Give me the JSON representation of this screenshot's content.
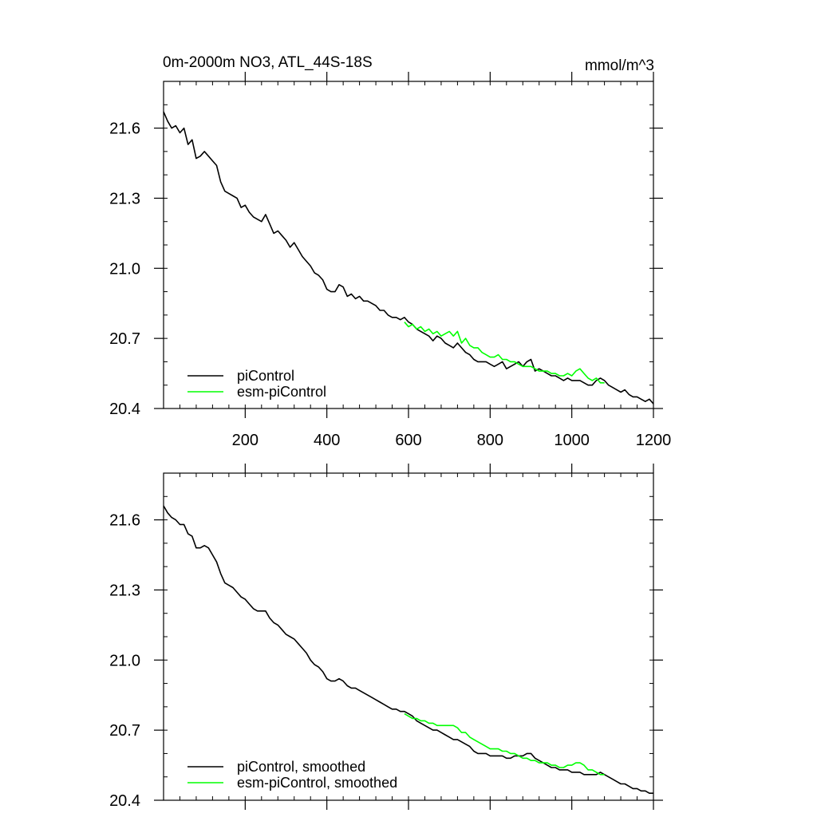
{
  "chart_data": [
    {
      "type": "line",
      "title": "0m-2000m NO3, ATL_44S-18S",
      "units": "mmol/m^3",
      "xlim": [
        0,
        1200
      ],
      "ylim": [
        20.4,
        21.8
      ],
      "xticks": [
        200,
        400,
        600,
        800,
        1000,
        1200
      ],
      "xtick_labels": [
        "200",
        "400",
        "600",
        "800",
        "1000",
        "1200"
      ],
      "yticks": [
        20.4,
        20.7,
        21.0,
        21.3,
        21.6
      ],
      "ytick_labels": [
        "20.4",
        "20.7",
        "21.0",
        "21.3",
        "21.6"
      ],
      "legend_position": "bottom-left",
      "series": [
        {
          "name": "piControl",
          "color": "#000000",
          "x": [
            0,
            10,
            20,
            30,
            40,
            50,
            60,
            70,
            80,
            90,
            100,
            110,
            120,
            130,
            140,
            150,
            160,
            170,
            180,
            190,
            200,
            210,
            220,
            230,
            240,
            250,
            260,
            270,
            280,
            290,
            300,
            310,
            320,
            330,
            340,
            350,
            360,
            370,
            380,
            390,
            400,
            410,
            420,
            430,
            440,
            450,
            460,
            470,
            480,
            490,
            500,
            510,
            520,
            530,
            540,
            550,
            560,
            570,
            580,
            590,
            600,
            610,
            620,
            630,
            640,
            650,
            660,
            670,
            680,
            690,
            700,
            710,
            720,
            730,
            740,
            750,
            760,
            770,
            780,
            790,
            800,
            810,
            820,
            830,
            840,
            850,
            860,
            870,
            880,
            890,
            900,
            910,
            920,
            930,
            940,
            950,
            960,
            970,
            980,
            990,
            1000,
            1010,
            1020,
            1030,
            1040,
            1050,
            1060,
            1070,
            1080,
            1090,
            1100,
            1110,
            1120,
            1130,
            1140,
            1150,
            1160,
            1170,
            1180,
            1190,
            1200
          ],
          "values": [
            21.67,
            21.63,
            21.6,
            21.61,
            21.58,
            21.6,
            21.53,
            21.55,
            21.47,
            21.48,
            21.5,
            21.48,
            21.46,
            21.44,
            21.37,
            21.33,
            21.32,
            21.31,
            21.3,
            21.26,
            21.27,
            21.24,
            21.22,
            21.21,
            21.2,
            21.23,
            21.19,
            21.15,
            21.16,
            21.14,
            21.12,
            21.09,
            21.11,
            21.08,
            21.05,
            21.03,
            21.01,
            20.98,
            20.97,
            20.95,
            20.91,
            20.9,
            20.9,
            20.93,
            20.92,
            20.88,
            20.89,
            20.87,
            20.88,
            20.86,
            20.86,
            20.85,
            20.84,
            20.82,
            20.82,
            20.8,
            20.79,
            20.79,
            20.78,
            20.79,
            20.77,
            20.76,
            20.74,
            20.73,
            20.72,
            20.71,
            20.69,
            20.71,
            20.7,
            20.68,
            20.67,
            20.66,
            20.68,
            20.66,
            20.64,
            20.63,
            20.61,
            20.6,
            20.6,
            20.6,
            20.59,
            20.58,
            20.59,
            20.6,
            20.57,
            20.58,
            20.59,
            20.6,
            20.58,
            20.6,
            20.61,
            20.56,
            20.57,
            20.56,
            20.55,
            20.54,
            20.54,
            20.53,
            20.52,
            20.53,
            20.52,
            20.52,
            20.52,
            20.51,
            20.5,
            20.5,
            20.52,
            20.53,
            20.52,
            20.5,
            20.49,
            20.48,
            20.47,
            20.48,
            20.46,
            20.45,
            20.45,
            20.44,
            20.43,
            20.44,
            20.42
          ]
        },
        {
          "name": "esm-piControl",
          "color": "#00ff00",
          "x": [
            590,
            600,
            610,
            620,
            630,
            640,
            650,
            660,
            670,
            680,
            690,
            700,
            710,
            720,
            730,
            740,
            750,
            760,
            770,
            780,
            790,
            800,
            810,
            820,
            830,
            840,
            850,
            860,
            870,
            880,
            890,
            900,
            910,
            920,
            930,
            940,
            950,
            960,
            970,
            980,
            990,
            1000,
            1010,
            1020,
            1030,
            1040,
            1050,
            1060,
            1070,
            1080
          ],
          "values": [
            20.77,
            20.75,
            20.76,
            20.74,
            20.75,
            20.73,
            20.74,
            20.72,
            20.73,
            20.71,
            20.72,
            20.73,
            20.71,
            20.73,
            20.68,
            20.7,
            20.67,
            20.66,
            20.66,
            20.64,
            20.63,
            20.62,
            20.62,
            20.63,
            20.61,
            20.61,
            20.6,
            20.6,
            20.59,
            20.58,
            20.58,
            20.58,
            20.57,
            20.56,
            20.56,
            20.56,
            20.55,
            20.55,
            20.54,
            20.54,
            20.55,
            20.54,
            20.56,
            20.57,
            20.55,
            20.53,
            20.52,
            20.53,
            20.51,
            20.51
          ]
        }
      ]
    },
    {
      "type": "line",
      "title": "",
      "units": "",
      "xlim": [
        0,
        1200
      ],
      "ylim": [
        20.4,
        21.8
      ],
      "xticks": [
        200,
        400,
        600,
        800,
        1000,
        1200
      ],
      "xtick_labels": [],
      "yticks": [
        20.4,
        20.7,
        21.0,
        21.3,
        21.6
      ],
      "ytick_labels": [
        "20.4",
        "20.7",
        "21.0",
        "21.3",
        "21.6"
      ],
      "legend_position": "bottom-left",
      "series": [
        {
          "name": "piControl, smoothed",
          "color": "#000000",
          "x": [
            0,
            10,
            20,
            30,
            40,
            50,
            60,
            70,
            80,
            90,
            100,
            110,
            120,
            130,
            140,
            150,
            160,
            170,
            180,
            190,
            200,
            210,
            220,
            230,
            240,
            250,
            260,
            270,
            280,
            290,
            300,
            310,
            320,
            330,
            340,
            350,
            360,
            370,
            380,
            390,
            400,
            410,
            420,
            430,
            440,
            450,
            460,
            470,
            480,
            490,
            500,
            510,
            520,
            530,
            540,
            550,
            560,
            570,
            580,
            590,
            600,
            610,
            620,
            630,
            640,
            650,
            660,
            670,
            680,
            690,
            700,
            710,
            720,
            730,
            740,
            750,
            760,
            770,
            780,
            790,
            800,
            810,
            820,
            830,
            840,
            850,
            860,
            870,
            880,
            890,
            900,
            910,
            920,
            930,
            940,
            950,
            960,
            970,
            980,
            990,
            1000,
            1010,
            1020,
            1030,
            1040,
            1050,
            1060,
            1070,
            1080,
            1090,
            1100,
            1110,
            1120,
            1130,
            1140,
            1150,
            1160,
            1170,
            1180,
            1190,
            1200
          ],
          "values": [
            21.66,
            21.63,
            21.61,
            21.6,
            21.58,
            21.58,
            21.54,
            21.53,
            21.48,
            21.48,
            21.49,
            21.48,
            21.45,
            21.42,
            21.37,
            21.33,
            21.32,
            21.31,
            21.29,
            21.27,
            21.26,
            21.24,
            21.22,
            21.21,
            21.21,
            21.21,
            21.18,
            21.16,
            21.15,
            21.13,
            21.11,
            21.1,
            21.09,
            21.07,
            21.05,
            21.03,
            21.0,
            20.98,
            20.97,
            20.95,
            20.92,
            20.91,
            20.91,
            20.92,
            20.91,
            20.89,
            20.88,
            20.88,
            20.87,
            20.86,
            20.85,
            20.84,
            20.83,
            20.82,
            20.81,
            20.8,
            20.79,
            20.79,
            20.78,
            20.78,
            20.77,
            20.76,
            20.74,
            20.73,
            20.72,
            20.71,
            20.7,
            20.7,
            20.69,
            20.68,
            20.67,
            20.66,
            20.66,
            20.65,
            20.64,
            20.63,
            20.61,
            20.6,
            20.6,
            20.6,
            20.59,
            20.59,
            20.59,
            20.59,
            20.58,
            20.58,
            20.59,
            20.59,
            20.59,
            20.6,
            20.6,
            20.58,
            20.57,
            20.56,
            20.55,
            20.54,
            20.54,
            20.53,
            20.53,
            20.53,
            20.52,
            20.52,
            20.52,
            20.51,
            20.51,
            20.51,
            20.51,
            20.52,
            20.51,
            20.5,
            20.49,
            20.48,
            20.47,
            20.47,
            20.46,
            20.45,
            20.45,
            20.44,
            20.44,
            20.43,
            20.43
          ]
        },
        {
          "name": "esm-piControl, smoothed",
          "color": "#00ff00",
          "x": [
            590,
            600,
            610,
            620,
            630,
            640,
            650,
            660,
            670,
            680,
            690,
            700,
            710,
            720,
            730,
            740,
            750,
            760,
            770,
            780,
            790,
            800,
            810,
            820,
            830,
            840,
            850,
            860,
            870,
            880,
            890,
            900,
            910,
            920,
            930,
            940,
            950,
            960,
            970,
            980,
            990,
            1000,
            1010,
            1020,
            1030,
            1040,
            1050,
            1060,
            1070,
            1080
          ],
          "values": [
            20.77,
            20.76,
            20.75,
            20.75,
            20.74,
            20.74,
            20.73,
            20.73,
            20.72,
            20.72,
            20.72,
            20.72,
            20.72,
            20.71,
            20.69,
            20.69,
            20.67,
            20.66,
            20.65,
            20.64,
            20.63,
            20.62,
            20.62,
            20.62,
            20.61,
            20.61,
            20.6,
            20.6,
            20.59,
            20.58,
            20.58,
            20.57,
            20.57,
            20.56,
            20.56,
            20.56,
            20.55,
            20.55,
            20.54,
            20.54,
            20.55,
            20.55,
            20.56,
            20.56,
            20.55,
            20.53,
            20.53,
            20.52,
            20.51,
            20.51
          ]
        }
      ]
    }
  ]
}
